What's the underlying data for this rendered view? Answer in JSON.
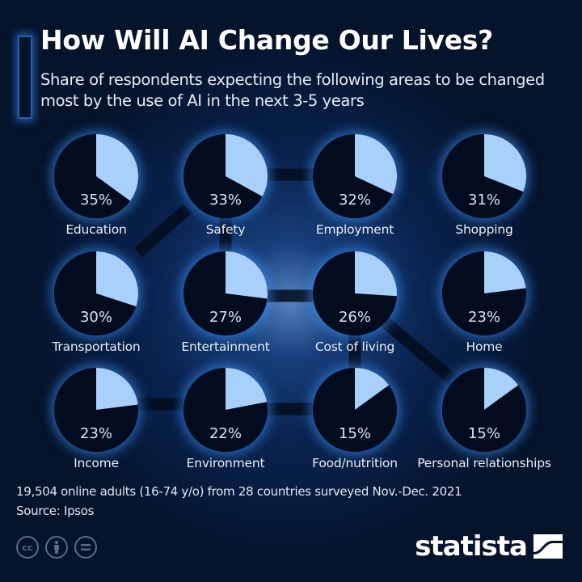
{
  "header": {
    "title": "How Will AI Change Our Lives?",
    "subtitle": "Share of respondents expecting the following areas to be changed most by the use of AI in the next 3-5 years"
  },
  "colors": {
    "background": "#05132b",
    "pie_fill": "#a8d0fa",
    "pie_base": "#020c1e",
    "glow": "#3c8cf0"
  },
  "items": [
    {
      "label": "Education",
      "value": 35,
      "display": "35%"
    },
    {
      "label": "Safety",
      "value": 33,
      "display": "33%"
    },
    {
      "label": "Employment",
      "value": 32,
      "display": "32%"
    },
    {
      "label": "Shopping",
      "value": 31,
      "display": "31%"
    },
    {
      "label": "Transportation",
      "value": 30,
      "display": "30%"
    },
    {
      "label": "Entertainment",
      "value": 27,
      "display": "27%"
    },
    {
      "label": "Cost of living",
      "value": 26,
      "display": "26%"
    },
    {
      "label": "Home",
      "value": 23,
      "display": "23%"
    },
    {
      "label": "Income",
      "value": 23,
      "display": "23%"
    },
    {
      "label": "Environment",
      "value": 22,
      "display": "22%"
    },
    {
      "label": "Food/nutrition",
      "value": 15,
      "display": "15%"
    },
    {
      "label": "Personal relationships",
      "value": 15,
      "display": "15%"
    }
  ],
  "footer": {
    "note": "19,504 online adults (16-74 y/o) from 28 countries surveyed Nov.-Dec. 2021",
    "source": "Source: Ipsos",
    "license_icons": [
      "cc-icon",
      "attribution-icon",
      "no-derivatives-icon"
    ],
    "cc_text": "cc",
    "logo": "statista"
  },
  "chart_data": {
    "type": "pie",
    "title": "How Will AI Change Our Lives?",
    "subtitle": "Share of respondents expecting the following areas to be changed most by the use of AI in the next 3-5 years",
    "unit": "%",
    "categories": [
      "Education",
      "Safety",
      "Employment",
      "Shopping",
      "Transportation",
      "Entertainment",
      "Cost of living",
      "Home",
      "Income",
      "Environment",
      "Food/nutrition",
      "Personal relationships"
    ],
    "values": [
      35,
      33,
      32,
      31,
      30,
      27,
      26,
      23,
      23,
      22,
      15,
      15
    ],
    "layout": "grid of 12 small pies, 4 columns x 3 rows",
    "note": "19,504 online adults (16-74 y/o) from 28 countries surveyed Nov.-Dec. 2021",
    "source": "Ipsos"
  }
}
